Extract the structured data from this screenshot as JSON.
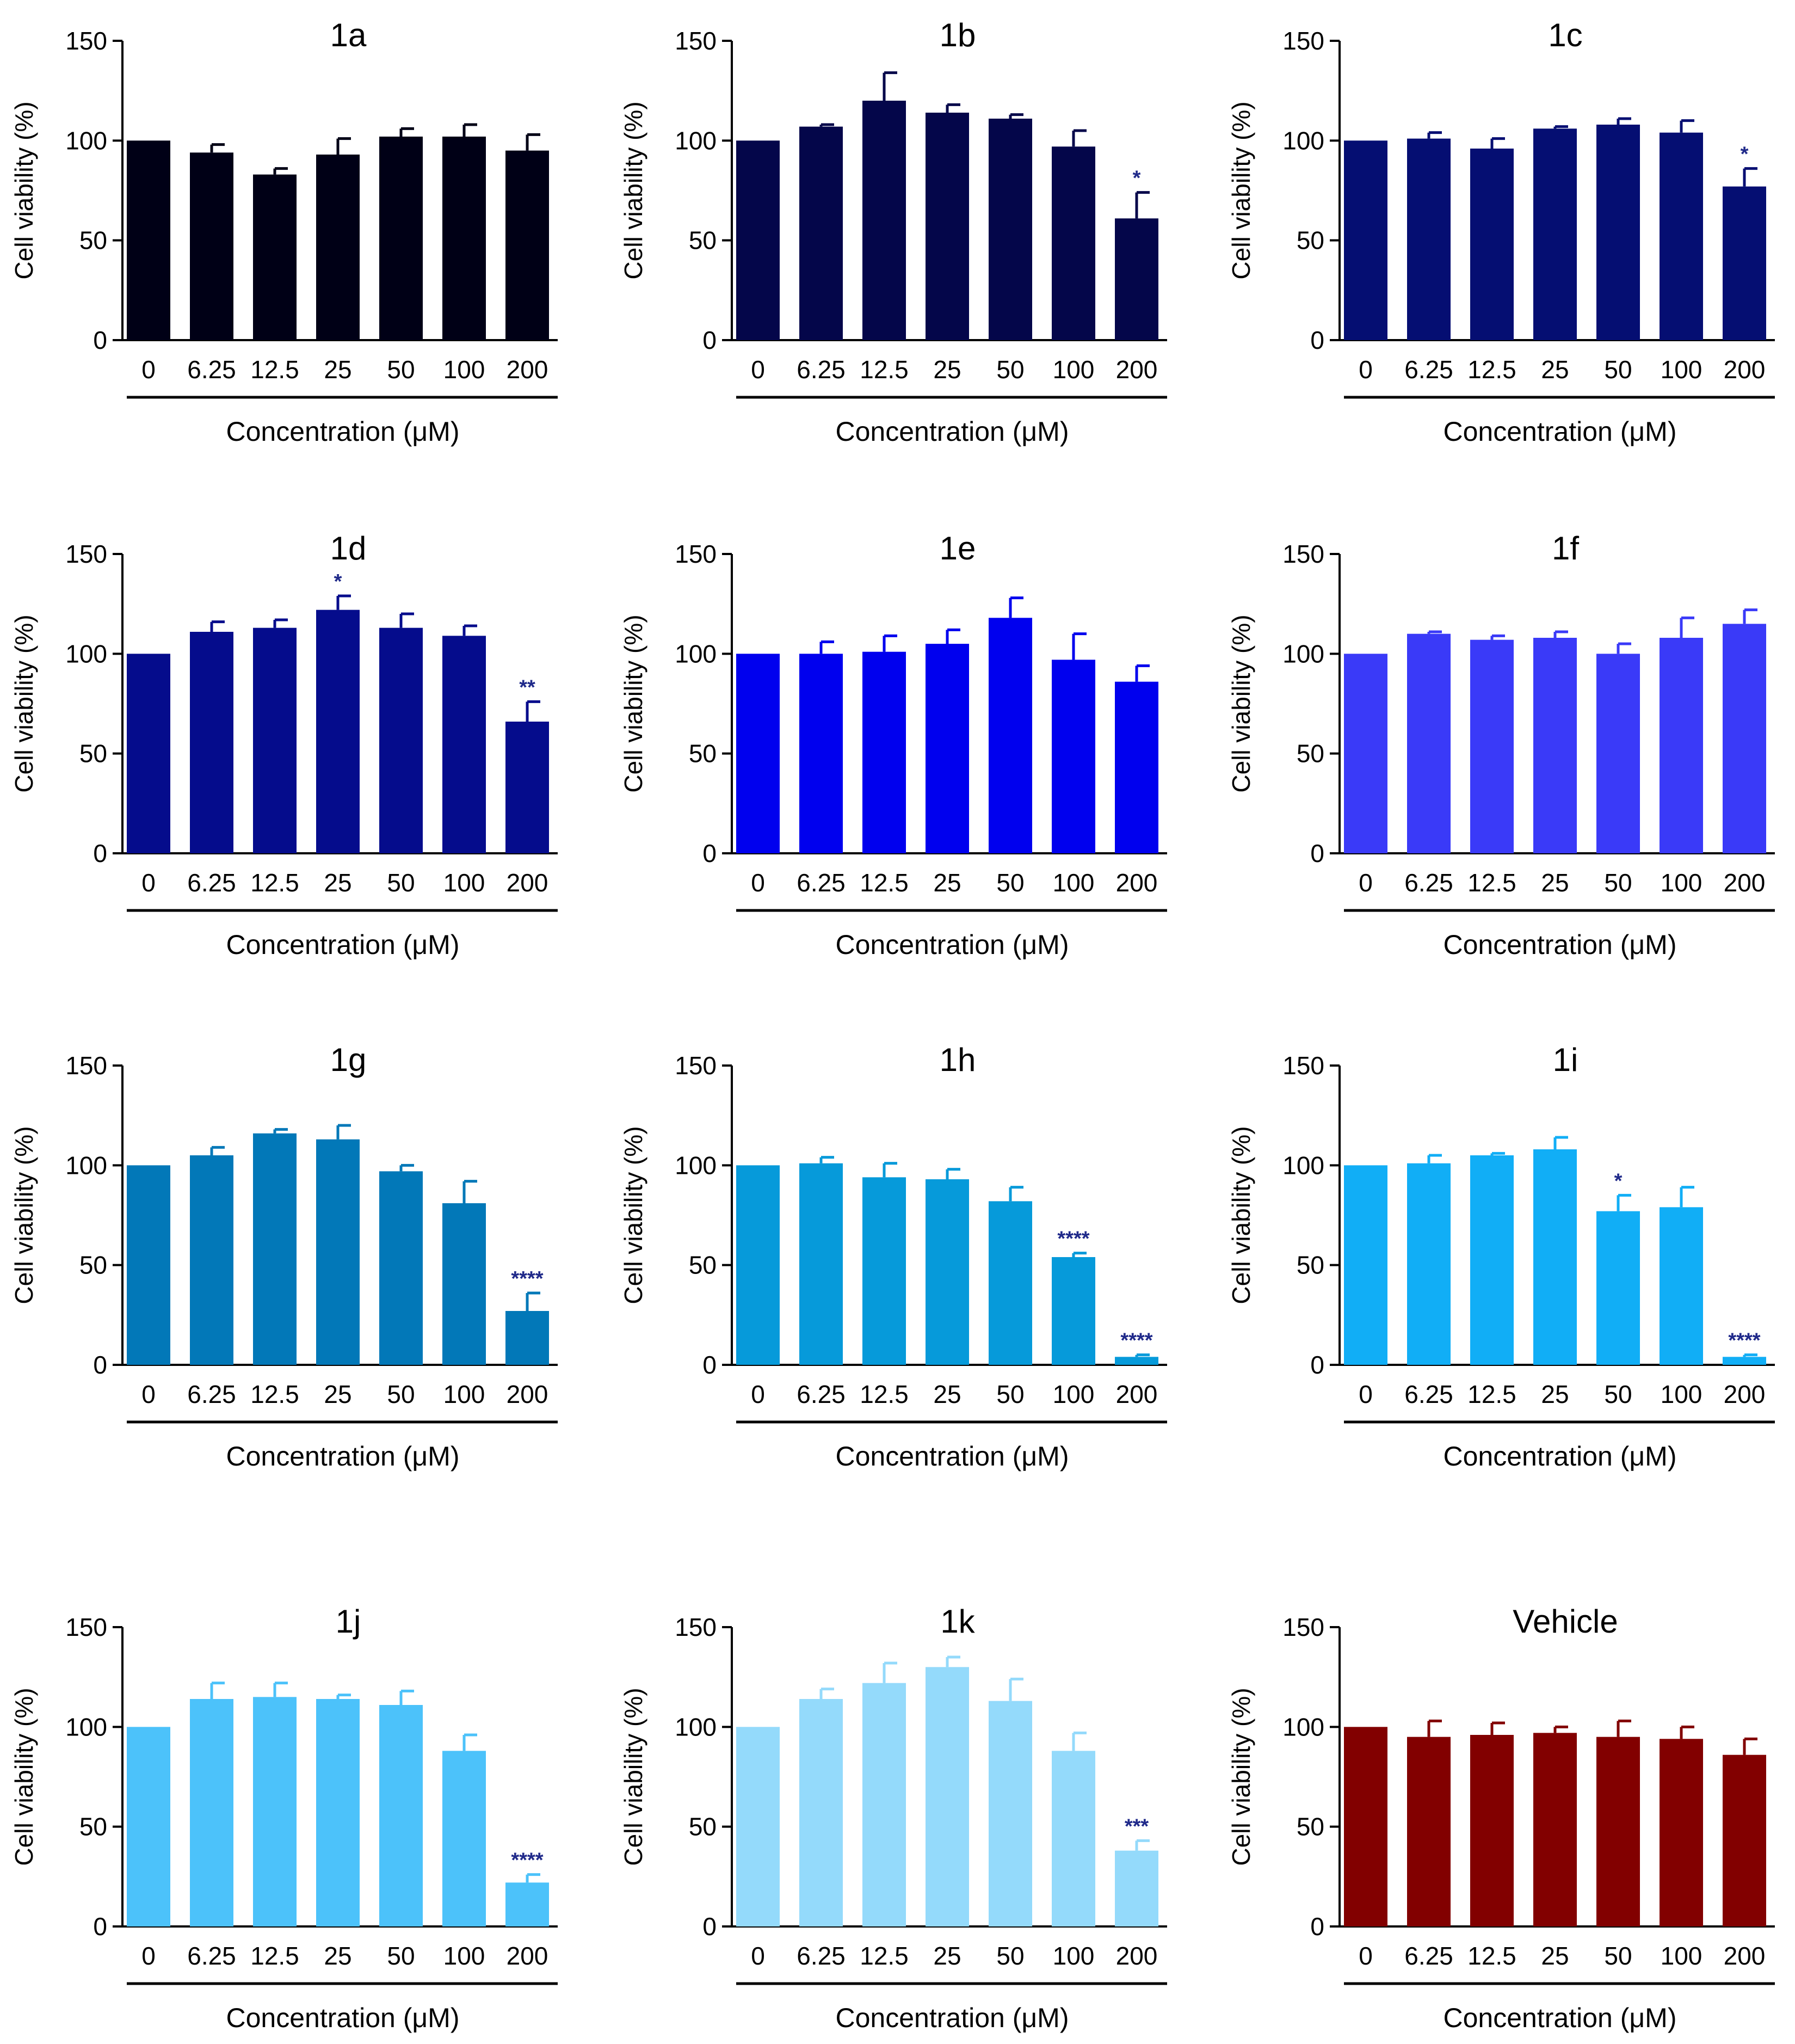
{
  "chart_data": [
    {
      "type": "bar",
      "title": "1a",
      "ylabel": "Cell viability (%)",
      "xlabel": "Concentration (μM)",
      "yticks": [
        "0",
        "50",
        "100",
        "150"
      ],
      "ylim": [
        0,
        150
      ],
      "categories": [
        "0",
        "6.25",
        "12.5",
        "25",
        "50",
        "100",
        "200"
      ],
      "color": "#000016",
      "values": [
        100,
        94,
        83,
        93,
        102,
        102,
        95
      ],
      "errors": [
        0,
        4,
        3,
        8,
        4,
        6,
        8
      ],
      "significance": [
        "",
        "",
        "",
        "",
        "",
        "",
        ""
      ]
    },
    {
      "type": "bar",
      "title": "1b",
      "ylabel": "Cell viability (%)",
      "xlabel": "Concentration (μM)",
      "yticks": [
        "0",
        "50",
        "100",
        "150"
      ],
      "ylim": [
        0,
        150
      ],
      "categories": [
        "0",
        "6.25",
        "12.5",
        "25",
        "50",
        "100",
        "200"
      ],
      "color": "#04064a",
      "values": [
        100,
        107,
        120,
        114,
        111,
        97,
        61
      ],
      "errors": [
        0,
        1,
        14,
        4,
        2,
        8,
        13
      ],
      "significance": [
        "",
        "",
        "",
        "",
        "",
        "",
        "*"
      ]
    },
    {
      "type": "bar",
      "title": "1c",
      "ylabel": "Cell viability (%)",
      "xlabel": "Concentration (μM)",
      "yticks": [
        "0",
        "50",
        "100",
        "150"
      ],
      "ylim": [
        0,
        150
      ],
      "categories": [
        "0",
        "6.25",
        "12.5",
        "25",
        "50",
        "100",
        "200"
      ],
      "color": "#050e72",
      "values": [
        100,
        101,
        96,
        106,
        108,
        104,
        77
      ],
      "errors": [
        0,
        3,
        5,
        1,
        3,
        6,
        9
      ],
      "significance": [
        "",
        "",
        "",
        "",
        "",
        "",
        "*"
      ]
    },
    {
      "type": "bar",
      "title": "1d",
      "ylabel": "Cell viability (%)",
      "xlabel": "Concentration (μM)",
      "yticks": [
        "0",
        "50",
        "100",
        "150"
      ],
      "ylim": [
        0,
        150
      ],
      "categories": [
        "0",
        "6.25",
        "12.5",
        "25",
        "50",
        "100",
        "200"
      ],
      "color": "#050c8c",
      "values": [
        100,
        111,
        113,
        122,
        113,
        109,
        66
      ],
      "errors": [
        0,
        5,
        4,
        7,
        7,
        5,
        10
      ],
      "significance": [
        "",
        "",
        "",
        "*",
        "",
        "",
        "**"
      ]
    },
    {
      "type": "bar",
      "title": "1e",
      "ylabel": "Cell viability (%)",
      "xlabel": "Concentration (μM)",
      "yticks": [
        "0",
        "50",
        "100",
        "150"
      ],
      "ylim": [
        0,
        150
      ],
      "categories": [
        "0",
        "6.25",
        "12.5",
        "25",
        "50",
        "100",
        "200"
      ],
      "color": "#0000ee",
      "values": [
        100,
        100,
        101,
        105,
        118,
        97,
        86
      ],
      "errors": [
        0,
        6,
        8,
        7,
        10,
        13,
        8
      ],
      "significance": [
        "",
        "",
        "",
        "",
        "",
        "",
        ""
      ]
    },
    {
      "type": "bar",
      "title": "1f",
      "ylabel": "Cell viability (%)",
      "xlabel": "Concentration (μM)",
      "yticks": [
        "0",
        "50",
        "100",
        "150"
      ],
      "ylim": [
        0,
        150
      ],
      "categories": [
        "0",
        "6.25",
        "12.5",
        "25",
        "50",
        "100",
        "200"
      ],
      "color": "#3a3af8",
      "values": [
        100,
        110,
        107,
        108,
        100,
        108,
        115
      ],
      "errors": [
        0,
        1,
        2,
        3,
        5,
        10,
        7
      ],
      "significance": [
        "",
        "",
        "",
        "",
        "",
        "",
        ""
      ]
    },
    {
      "type": "bar",
      "title": "1g",
      "ylabel": "Cell viability (%)",
      "xlabel": "Concentration (μM)",
      "yticks": [
        "0",
        "50",
        "100",
        "150"
      ],
      "ylim": [
        0,
        150
      ],
      "categories": [
        "0",
        "6.25",
        "12.5",
        "25",
        "50",
        "100",
        "200"
      ],
      "color": "#0278b8",
      "values": [
        100,
        105,
        116,
        113,
        97,
        81,
        27
      ],
      "errors": [
        0,
        4,
        2,
        7,
        3,
        11,
        9
      ],
      "significance": [
        "",
        "",
        "",
        "",
        "",
        "",
        "****"
      ]
    },
    {
      "type": "bar",
      "title": "1h",
      "ylabel": "Cell viability (%)",
      "xlabel": "Concentration (μM)",
      "yticks": [
        "0",
        "50",
        "100",
        "150"
      ],
      "ylim": [
        0,
        150
      ],
      "categories": [
        "0",
        "6.25",
        "12.5",
        "25",
        "50",
        "100",
        "200"
      ],
      "color": "#069ada",
      "values": [
        100,
        101,
        94,
        93,
        82,
        54,
        4
      ],
      "errors": [
        0,
        3,
        7,
        5,
        7,
        2,
        1
      ],
      "significance": [
        "",
        "",
        "",
        "",
        "",
        "****",
        "****"
      ]
    },
    {
      "type": "bar",
      "title": "1i",
      "ylabel": "Cell viability (%)",
      "xlabel": "Concentration (μM)",
      "yticks": [
        "0",
        "50",
        "100",
        "150"
      ],
      "ylim": [
        0,
        150
      ],
      "categories": [
        "0",
        "6.25",
        "12.5",
        "25",
        "50",
        "100",
        "200"
      ],
      "color": "#11aef6",
      "values": [
        100,
        101,
        105,
        108,
        77,
        79,
        4
      ],
      "errors": [
        0,
        4,
        1,
        6,
        8,
        10,
        1
      ],
      "significance": [
        "",
        "",
        "",
        "",
        "*",
        "",
        "****"
      ]
    },
    {
      "type": "bar",
      "title": "1j",
      "ylabel": "Cell viability (%)",
      "xlabel": "Concentration (μM)",
      "yticks": [
        "0",
        "50",
        "100",
        "150"
      ],
      "ylim": [
        0,
        150
      ],
      "categories": [
        "0",
        "6.25",
        "12.5",
        "25",
        "50",
        "100",
        "200"
      ],
      "color": "#4cc2fa",
      "values": [
        100,
        114,
        115,
        114,
        111,
        88,
        22
      ],
      "errors": [
        0,
        8,
        7,
        2,
        7,
        8,
        4
      ],
      "significance": [
        "",
        "",
        "",
        "",
        "",
        "",
        "****"
      ]
    },
    {
      "type": "bar",
      "title": "1k",
      "ylabel": "Cell viability (%)",
      "xlabel": "Concentration (μM)",
      "yticks": [
        "0",
        "50",
        "100",
        "150"
      ],
      "ylim": [
        0,
        150
      ],
      "categories": [
        "0",
        "6.25",
        "12.5",
        "25",
        "50",
        "100",
        "200"
      ],
      "color": "#94dafb",
      "values": [
        100,
        114,
        122,
        130,
        113,
        88,
        38
      ],
      "errors": [
        0,
        5,
        10,
        5,
        11,
        9,
        5
      ],
      "significance": [
        "",
        "",
        "",
        "",
        "",
        "",
        "***"
      ]
    },
    {
      "type": "bar",
      "title": "Vehicle",
      "ylabel": "Cell viability (%)",
      "xlabel": "Concentration (μM)",
      "yticks": [
        "0",
        "50",
        "100",
        "150"
      ],
      "ylim": [
        0,
        150
      ],
      "categories": [
        "0",
        "6.25",
        "12.5",
        "25",
        "50",
        "100",
        "200"
      ],
      "color": "#820000",
      "values": [
        100,
        95,
        96,
        97,
        95,
        94,
        86
      ],
      "errors": [
        0,
        8,
        6,
        3,
        8,
        6,
        8
      ],
      "significance": [
        "",
        "",
        "",
        "",
        "",
        "",
        ""
      ]
    }
  ],
  "colors": {
    "axis": "#000000",
    "significance": "#202a8a",
    "error_bar_default": "same-as-bar"
  }
}
